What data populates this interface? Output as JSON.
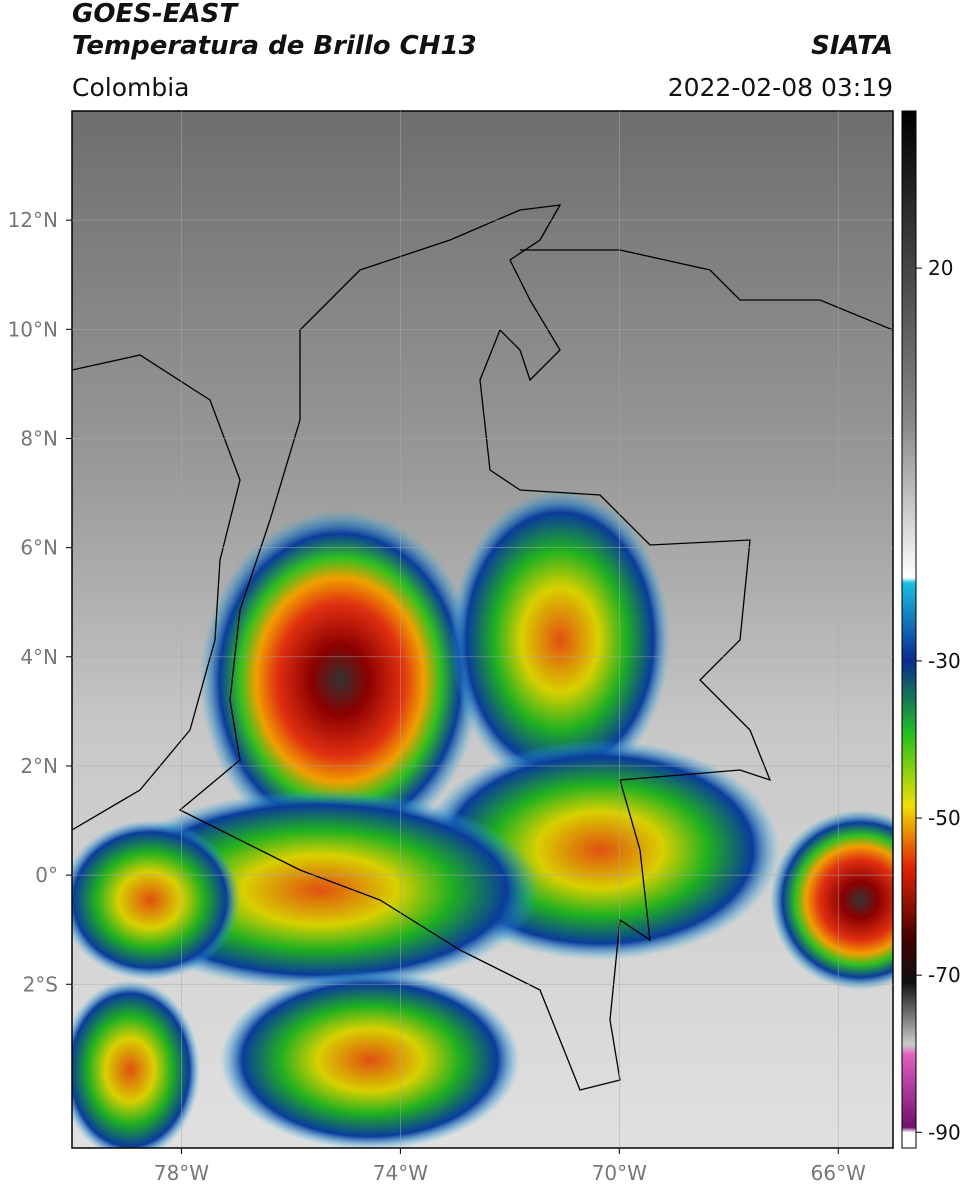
{
  "header": {
    "title": "GOES-EAST",
    "subtitle": "Temperatura de Brillo CH13",
    "source": "SIATA",
    "region": "Colombia",
    "datetime": "2022-02-08 03:19"
  },
  "map": {
    "xlim": [
      -80,
      -65
    ],
    "ylim": [
      -5,
      14
    ],
    "grid": true,
    "xticks": [
      {
        "value": -78,
        "label": "78°W"
      },
      {
        "value": -74,
        "label": "74°W"
      },
      {
        "value": -70,
        "label": "70°W"
      },
      {
        "value": -66,
        "label": "66°W"
      }
    ],
    "yticks": [
      {
        "value": 12,
        "label": "12°N"
      },
      {
        "value": 10,
        "label": "10°N"
      },
      {
        "value": 8,
        "label": "8°N"
      },
      {
        "value": 6,
        "label": "6°N"
      },
      {
        "value": 4,
        "label": "4°N"
      },
      {
        "value": 2,
        "label": "2°N"
      },
      {
        "value": 0,
        "label": "0°"
      },
      {
        "value": -2,
        "label": "2°S"
      }
    ]
  },
  "colorbar": {
    "lim": [
      -92,
      40
    ],
    "ticks": [
      20,
      -30,
      -50,
      -70,
      -90
    ]
  }
}
